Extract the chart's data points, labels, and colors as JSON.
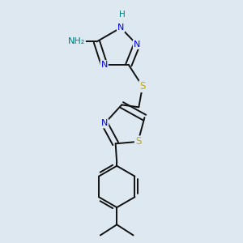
{
  "bg_color": "#dde8f0",
  "atom_colors": {
    "N": "#0000ee",
    "S": "#ccaa00",
    "H_teal": "#008080",
    "NH2_teal": "#008080"
  },
  "bond_color": "#111111",
  "bond_width": 1.4,
  "figsize": [
    3.0,
    3.0
  ],
  "dpi": 100,
  "xlim": [
    0.1,
    0.9
  ],
  "ylim": [
    0.02,
    0.98
  ]
}
